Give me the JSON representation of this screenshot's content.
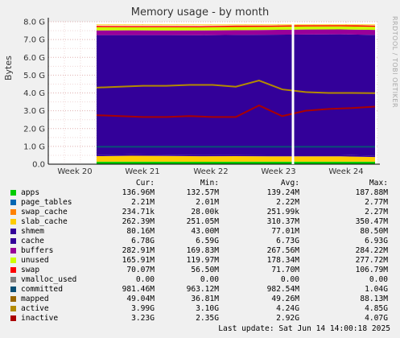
{
  "chart_data": {
    "type": "area",
    "title": "Memory usage - by month",
    "side_credit": "RRDTOOL / TOBI OETIKER",
    "ylabel": "Bytes",
    "yticks": [
      "0.0",
      "1.0 G",
      "2.0 G",
      "3.0 G",
      "4.0 G",
      "5.0 G",
      "6.0 G",
      "7.0 G",
      "8.0 G"
    ],
    "ylim": [
      0,
      8.0
    ],
    "xticks": [
      "Week 20",
      "Week 21",
      "Week 22",
      "Week 23",
      "Week 24"
    ],
    "grid": true,
    "stack_order": [
      "apps",
      "page_tables",
      "swap_cache",
      "slab_cache",
      "shmem",
      "cache",
      "buffers",
      "unused",
      "swap"
    ],
    "series": [
      {
        "name": "apps",
        "color": "#00cc00",
        "values_gb": [
          0.137,
          0.14,
          0.14,
          0.135,
          0.138,
          0.14,
          0.14,
          0.139,
          0.137
        ]
      },
      {
        "name": "page_tables",
        "color": "#0066b3",
        "values_gb": [
          0.002,
          0.002,
          0.002,
          0.002,
          0.002,
          0.002,
          0.002,
          0.002,
          0.002
        ]
      },
      {
        "name": "swap_cache",
        "color": "#ff8000",
        "values_gb": [
          0.0002,
          0.0002,
          0.0002,
          0.0002,
          0.0002,
          0.0002,
          0.0002,
          0.0002,
          0.0002
        ]
      },
      {
        "name": "slab_cache",
        "color": "#ffcc00",
        "values_gb": [
          0.31,
          0.33,
          0.32,
          0.31,
          0.31,
          0.3,
          0.3,
          0.3,
          0.262
        ]
      },
      {
        "name": "shmem",
        "color": "#330099",
        "values_gb": [
          0.077,
          0.077,
          0.077,
          0.077,
          0.077,
          0.08,
          0.08,
          0.08,
          0.08
        ]
      },
      {
        "name": "cache",
        "color": "#330099",
        "values_gb": [
          6.72,
          6.7,
          6.71,
          6.72,
          6.73,
          6.75,
          6.76,
          6.77,
          6.78
        ]
      },
      {
        "name": "buffers",
        "color": "#990099",
        "values_gb": [
          0.27,
          0.27,
          0.26,
          0.27,
          0.27,
          0.27,
          0.28,
          0.28,
          0.283
        ]
      },
      {
        "name": "unused",
        "color": "#ccff00",
        "values_gb": [
          0.18,
          0.17,
          0.18,
          0.17,
          0.18,
          0.17,
          0.17,
          0.17,
          0.166
        ]
      },
      {
        "name": "swap",
        "color": "#ff0000",
        "values_gb": [
          0.07,
          0.07,
          0.07,
          0.07,
          0.07,
          0.07,
          0.07,
          0.07,
          0.07
        ]
      }
    ],
    "lines": [
      {
        "name": "committed",
        "color": "#0b4f75",
        "values_gb": [
          0.98,
          0.98,
          0.98,
          0.98,
          0.98,
          0.98,
          0.98,
          0.98,
          0.98
        ]
      },
      {
        "name": "active",
        "color": "#b38a00",
        "values_gb": [
          4.3,
          4.35,
          4.4,
          4.4,
          4.45,
          4.45,
          4.35,
          4.7,
          4.2,
          4.05,
          4.0,
          4.0,
          3.99
        ]
      },
      {
        "name": "inactive",
        "color": "#aa0000",
        "values_gb": [
          2.75,
          2.7,
          2.65,
          2.65,
          2.7,
          2.65,
          2.65,
          3.3,
          2.7,
          3.0,
          3.1,
          3.15,
          3.23
        ]
      }
    ],
    "legend": {
      "headers": [
        "Cur:",
        "Min:",
        "Avg:",
        "Max:"
      ],
      "rows": [
        {
          "name": "apps",
          "color": "#00cc00",
          "cur": "136.96M",
          "min": "132.57M",
          "avg": "139.24M",
          "max": "187.88M"
        },
        {
          "name": "page_tables",
          "color": "#0066b3",
          "cur": "2.21M",
          "min": "2.01M",
          "avg": "2.22M",
          "max": "2.77M"
        },
        {
          "name": "swap_cache",
          "color": "#ff8000",
          "cur": "234.71k",
          "min": "28.00k",
          "avg": "251.99k",
          "max": "2.27M"
        },
        {
          "name": "slab_cache",
          "color": "#ffcc00",
          "cur": "262.39M",
          "min": "251.05M",
          "avg": "310.37M",
          "max": "350.47M"
        },
        {
          "name": "shmem",
          "color": "#330099",
          "cur": "80.16M",
          "min": "43.00M",
          "avg": "77.01M",
          "max": "80.50M"
        },
        {
          "name": "cache",
          "color": "#330099",
          "cur": "6.78G",
          "min": "6.59G",
          "avg": "6.73G",
          "max": "6.93G"
        },
        {
          "name": "buffers",
          "color": "#990099",
          "cur": "282.91M",
          "min": "169.83M",
          "avg": "267.56M",
          "max": "284.22M"
        },
        {
          "name": "unused",
          "color": "#ccff00",
          "cur": "165.91M",
          "min": "119.97M",
          "avg": "178.34M",
          "max": "277.72M"
        },
        {
          "name": "swap",
          "color": "#ff0000",
          "cur": "70.07M",
          "min": "56.50M",
          "avg": "71.70M",
          "max": "106.79M"
        },
        {
          "name": "vmalloc_used",
          "color": "#808080",
          "cur": "0.00",
          "min": "0.00",
          "avg": "0.00",
          "max": "0.00"
        },
        {
          "name": "committed",
          "color": "#0b4f75",
          "cur": "981.46M",
          "min": "963.12M",
          "avg": "982.54M",
          "max": "1.04G"
        },
        {
          "name": "mapped",
          "color": "#996600",
          "cur": "49.04M",
          "min": "36.81M",
          "avg": "49.26M",
          "max": "88.13M"
        },
        {
          "name": "active",
          "color": "#b38a00",
          "cur": "3.99G",
          "min": "3.10G",
          "avg": "4.24G",
          "max": "4.85G"
        },
        {
          "name": "inactive",
          "color": "#aa0000",
          "cur": "3.23G",
          "min": "2.35G",
          "avg": "2.92G",
          "max": "4.07G"
        }
      ]
    }
  },
  "last_update": "Last update: Sat Jun 14 14:00:18 2025"
}
